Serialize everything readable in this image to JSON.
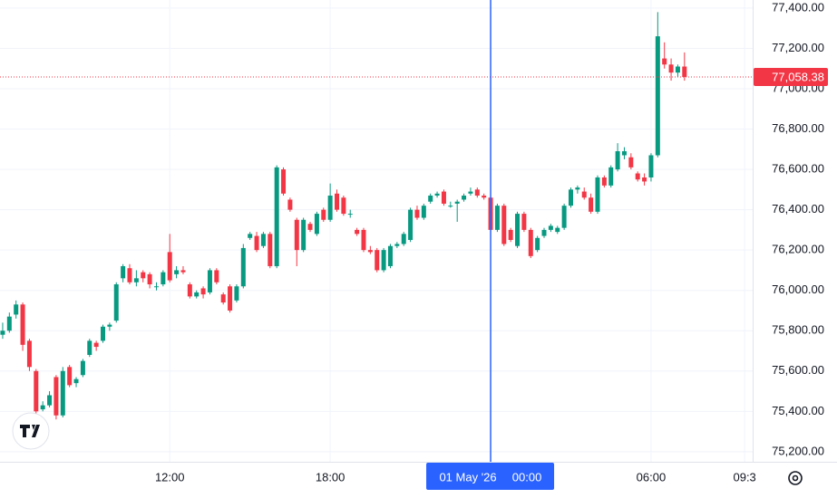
{
  "chart_data": {
    "type": "candlestick",
    "x": [
      5.75,
      6,
      6.25,
      6.5,
      6.75,
      7,
      7.25,
      7.5,
      7.75,
      8,
      8.25,
      8.5,
      8.75,
      9,
      9.25,
      9.5,
      9.75,
      10,
      10.25,
      10.5,
      10.75,
      11,
      11.25,
      11.5,
      11.75,
      12,
      12.25,
      12.5,
      12.75,
      13,
      13.25,
      13.5,
      13.75,
      14,
      14.25,
      14.5,
      14.75,
      15,
      15.25,
      15.5,
      15.75,
      16,
      16.25,
      16.5,
      16.75,
      17,
      17.25,
      17.5,
      17.75,
      18,
      18.25,
      18.5,
      18.75,
      19,
      19.25,
      19.5,
      19.75,
      20,
      20.25,
      20.5,
      20.75,
      21,
      21.25,
      21.5,
      21.75,
      22,
      22.25,
      22.5,
      22.75,
      23,
      23.25,
      23.5,
      23.75,
      24,
      24.25,
      24.5,
      24.75,
      25,
      25.25,
      25.5,
      25.75,
      26,
      26.25,
      26.5,
      26.75,
      27,
      27.25,
      27.5,
      27.75,
      28,
      28.25,
      28.5,
      28.75,
      29,
      29.25,
      29.5,
      29.75,
      30,
      30.25,
      30.5,
      30.75,
      31,
      31.25
    ],
    "open": [
      75780,
      75800,
      75880,
      75930,
      75750,
      75600,
      75410,
      75430,
      75570,
      75380,
      75620,
      75540,
      75580,
      75680,
      75740,
      75750,
      75820,
      75850,
      76060,
      76110,
      76040,
      76090,
      76080,
      76020,
      76030,
      76190,
      76080,
      76100,
      76030,
      75970,
      76010,
      75990,
      76100,
      75980,
      76020,
      75950,
      76020,
      76260,
      76270,
      76220,
      76280,
      76120,
      76600,
      76450,
      76350,
      76200,
      76330,
      76280,
      76400,
      76350,
      76480,
      76460,
      76380,
      76300,
      76300,
      76200,
      76200,
      76100,
      76120,
      76220,
      76230,
      76250,
      76400,
      76360,
      76440,
      76470,
      76490,
      76420,
      76430,
      76450,
      76480,
      76500,
      76470,
      76460,
      76300,
      76420,
      76300,
      76220,
      76380,
      76300,
      76200,
      76270,
      76300,
      76290,
      76310,
      76420,
      76500,
      76490,
      76460,
      76390,
      76560,
      76520,
      76600,
      76670,
      76660,
      76580,
      76560,
      76560,
      76670,
      77150,
      77120,
      77080,
      77110
    ],
    "high": [
      75840,
      75890,
      75950,
      75940,
      75760,
      75610,
      75450,
      75500,
      75580,
      75620,
      75630,
      75570,
      75660,
      75760,
      75750,
      75830,
      75840,
      76040,
      76130,
      76130,
      76100,
      76100,
      76090,
      76040,
      76100,
      76280,
      76120,
      76120,
      76040,
      76000,
      76020,
      76110,
      76110,
      75990,
      76030,
      76030,
      76230,
      76290,
      76290,
      76290,
      76290,
      76620,
      76610,
      76460,
      76360,
      76360,
      76340,
      76390,
      76410,
      76530,
      76500,
      76470,
      76400,
      76310,
      76310,
      76220,
      76210,
      76210,
      76230,
      76240,
      76290,
      76410,
      76420,
      76430,
      76480,
      76490,
      76500,
      76440,
      76450,
      76480,
      76510,
      76510,
      76480,
      76470,
      76430,
      76430,
      76310,
      76390,
      76390,
      76310,
      76270,
      76310,
      76330,
      76320,
      76430,
      76510,
      76520,
      76510,
      76480,
      76570,
      76570,
      76620,
      76730,
      76710,
      76680,
      76590,
      76580,
      76680,
      77380,
      77230,
      77150,
      77120,
      77180
    ],
    "low": [
      75760,
      75790,
      75860,
      75700,
      75600,
      75380,
      75400,
      75420,
      75360,
      75370,
      75520,
      75520,
      75570,
      75670,
      75700,
      75740,
      75800,
      75840,
      76040,
      76030,
      76020,
      76040,
      76010,
      76000,
      76020,
      76040,
      76060,
      76080,
      75960,
      75960,
      75960,
      75980,
      76030,
      75930,
      75890,
      75940,
      76010,
      76250,
      76190,
      76210,
      76110,
      76110,
      76470,
      76390,
      76120,
      76190,
      76290,
      76270,
      76340,
      76340,
      76390,
      76370,
      76360,
      76270,
      76190,
      76180,
      76090,
      76090,
      76110,
      76210,
      76220,
      76240,
      76350,
      76350,
      76430,
      76460,
      76420,
      76410,
      76340,
      76440,
      76470,
      76460,
      76450,
      76290,
      76290,
      76220,
      76240,
      76210,
      76290,
      76160,
      76190,
      76260,
      76290,
      76280,
      76300,
      76410,
      76480,
      76450,
      76380,
      76380,
      76510,
      76510,
      76590,
      76650,
      76600,
      76540,
      76520,
      76540,
      76660,
      77100,
      77040,
      77060,
      77040
    ],
    "close": [
      75800,
      75870,
      75930,
      75730,
      75620,
      75400,
      75430,
      75480,
      75380,
      75600,
      75530,
      75560,
      75650,
      75750,
      75720,
      75820,
      75830,
      76030,
      76120,
      76040,
      76060,
      76060,
      76030,
      76020,
      76090,
      76050,
      76100,
      76090,
      75970,
      75990,
      75980,
      76100,
      76040,
      75940,
      75900,
      76020,
      76210,
      76280,
      76200,
      76280,
      76120,
      76610,
      76480,
      76400,
      76200,
      76350,
      76300,
      76380,
      76350,
      76470,
      76400,
      76380,
      76380,
      76280,
      76200,
      76190,
      76100,
      76200,
      76220,
      76230,
      76280,
      76400,
      76360,
      76420,
      76470,
      76480,
      76430,
      76420,
      76440,
      76470,
      76490,
      76470,
      76460,
      76300,
      76420,
      76230,
      76250,
      76380,
      76300,
      76170,
      76260,
      76300,
      76320,
      76310,
      76420,
      76500,
      76510,
      76460,
      76390,
      76560,
      76520,
      76610,
      76690,
      76690,
      76610,
      76550,
      76540,
      76670,
      77260,
      77120,
      77080,
      77110,
      77058.38
    ],
    "up_color": "#089981",
    "down_color": "#f23645",
    "xlim": [
      5.65,
      33.8
    ],
    "ylim": [
      75150,
      77440
    ],
    "xticks": [
      {
        "value": 12,
        "label": "12:00"
      },
      {
        "value": 18,
        "label": "18:00"
      },
      {
        "value": 30,
        "label": "06:00"
      },
      {
        "value": 33.5,
        "label": "09:3"
      }
    ],
    "yticks": [
      {
        "value": 75200,
        "label": "75,200.00"
      },
      {
        "value": 75400,
        "label": "75,400.00"
      },
      {
        "value": 75600,
        "label": "75,600.00"
      },
      {
        "value": 75800,
        "label": "75,800.00"
      },
      {
        "value": 76000,
        "label": "76,000.00"
      },
      {
        "value": 76200,
        "label": "76,200.00"
      },
      {
        "value": 76400,
        "label": "76,400.00"
      },
      {
        "value": 76600,
        "label": "76,600.00"
      },
      {
        "value": 76800,
        "label": "76,800.00"
      },
      {
        "value": 77000,
        "label": "77,000.00"
      },
      {
        "value": 77200,
        "label": "77,200.00"
      },
      {
        "value": 77400,
        "label": "77,400.00"
      }
    ],
    "grid": true,
    "last_price": {
      "value": 77058.38,
      "label": "77,058.38",
      "color": "#f23645"
    },
    "crosshair": {
      "x": 24,
      "date_label": "01 May '26",
      "time_label": "00:00",
      "color": "#2962ff"
    }
  }
}
